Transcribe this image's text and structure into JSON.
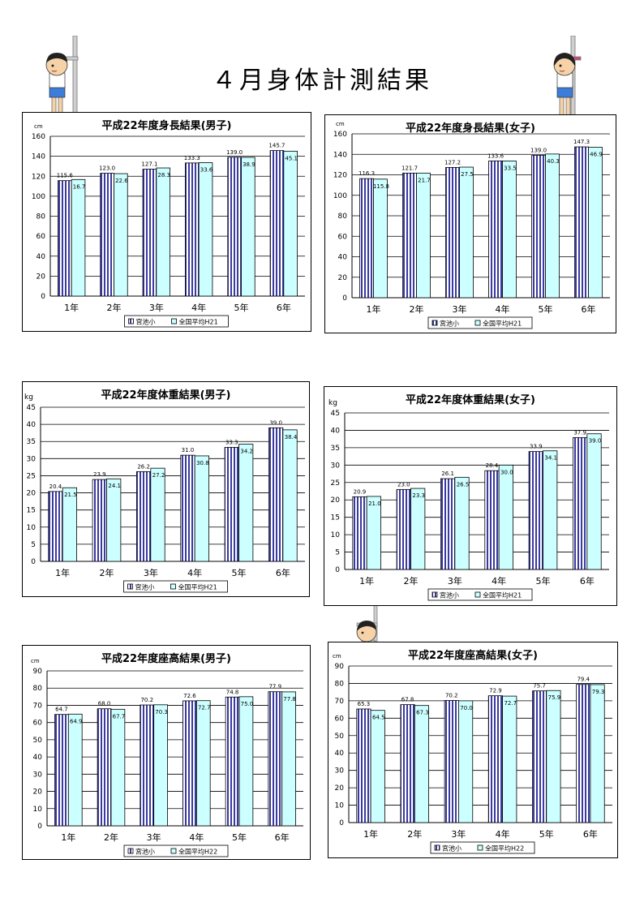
{
  "page": {
    "title": "４月身体計測結果"
  },
  "legend": {
    "school": "宮池小"
  },
  "chart_data": [
    {
      "id": "height-boys",
      "type": "bar",
      "title": "平成22年度身長結果(男子)",
      "unit": "cm",
      "categories": [
        "1年",
        "2年",
        "3年",
        "4年",
        "5年",
        "6年"
      ],
      "ylim": [
        0,
        160
      ],
      "ytick_step": 20,
      "series": [
        {
          "name": "宮池小",
          "values": [
            115.6,
            123.0,
            127.1,
            133.3,
            139.0,
            145.7
          ],
          "labels": [
            "115.6",
            "123.0",
            "127.1",
            "133.3",
            "139.0",
            "145.7"
          ]
        },
        {
          "name": "全国平均H21",
          "values": [
            116.7,
            122.6,
            128.3,
            133.6,
            138.9,
            145.1
          ],
          "labels": [
            "16.7",
            "22.6",
            "28.3",
            "33.6",
            "38.9",
            "45.1"
          ]
        }
      ]
    },
    {
      "id": "height-girls",
      "type": "bar",
      "title": "平成22年度身長結果(女子)",
      "unit": "cm",
      "categories": [
        "1年",
        "2年",
        "3年",
        "4年",
        "5年",
        "6年"
      ],
      "ylim": [
        0,
        160
      ],
      "ytick_step": 20,
      "series": [
        {
          "name": "宮池小",
          "values": [
            116.3,
            121.7,
            127.2,
            133.6,
            139.0,
            147.3
          ],
          "labels": [
            "116.3",
            "121.7",
            "127.2",
            "133.6",
            "139.0",
            "147.3"
          ]
        },
        {
          "name": "全国平均H21",
          "values": [
            115.8,
            121.7,
            127.5,
            133.5,
            140.3,
            146.9
          ],
          "labels": [
            "115.8",
            "21.7",
            "27.5",
            "33.5",
            "40.3",
            "46.9"
          ]
        }
      ]
    },
    {
      "id": "weight-boys",
      "type": "bar",
      "title": "平成22年度体重結果(男子)",
      "unit": "kg",
      "categories": [
        "1年",
        "2年",
        "3年",
        "4年",
        "5年",
        "6年"
      ],
      "ylim": [
        0,
        45
      ],
      "ytick_step": 5,
      "series": [
        {
          "name": "宮池小",
          "values": [
            20.4,
            23.9,
            26.2,
            31.0,
            33.3,
            39.0
          ],
          "labels": [
            "20.4",
            "23.9",
            "26.2",
            "31.0",
            "33.3",
            "39.0"
          ]
        },
        {
          "name": "全国平均H21",
          "values": [
            21.5,
            24.1,
            27.2,
            30.8,
            34.2,
            38.4
          ],
          "labels": [
            "21.5",
            "24.1",
            "27.2",
            "30.8",
            "34.2",
            "38.4"
          ]
        }
      ]
    },
    {
      "id": "weight-girls",
      "type": "bar",
      "title": "平成22年度体重結果(女子)",
      "unit": "kg",
      "categories": [
        "1年",
        "2年",
        "3年",
        "4年",
        "5年",
        "6年"
      ],
      "ylim": [
        0,
        45
      ],
      "ytick_step": 5,
      "series": [
        {
          "name": "宮池小",
          "values": [
            20.9,
            23.0,
            26.1,
            28.4,
            33.9,
            37.9
          ],
          "labels": [
            "20.9",
            "23.0",
            "26.1",
            "28.4",
            "33.9",
            "37.9"
          ]
        },
        {
          "name": "全国平均H21",
          "values": [
            21.0,
            23.3,
            26.5,
            30.0,
            34.1,
            39.0
          ],
          "labels": [
            "21.0",
            "23.3",
            "26.5",
            "30.0",
            "34.1",
            "39.0"
          ]
        }
      ]
    },
    {
      "id": "sitting-boys",
      "type": "bar",
      "title": "平成22年度座高結果(男子)",
      "unit": "cm",
      "categories": [
        "1年",
        "2年",
        "3年",
        "4年",
        "5年",
        "6年"
      ],
      "ylim": [
        0,
        90
      ],
      "ytick_step": 10,
      "series": [
        {
          "name": "宮池小",
          "values": [
            64.7,
            68.0,
            70.2,
            72.6,
            74.8,
            77.9
          ],
          "labels": [
            "64.7",
            "68.0",
            "70.2",
            "72.6",
            "74.8",
            "77.9"
          ]
        },
        {
          "name": "全国平均H22",
          "values": [
            64.9,
            67.7,
            70.3,
            72.7,
            75.0,
            77.8
          ],
          "labels": [
            "64.9",
            "67.7",
            "70.3",
            "72.7",
            "75.0",
            "77.8"
          ]
        }
      ]
    },
    {
      "id": "sitting-girls",
      "type": "bar",
      "title": "平成22年度座高結果(女子)",
      "unit": "cm",
      "categories": [
        "1年",
        "2年",
        "3年",
        "4年",
        "5年",
        "6年"
      ],
      "ylim": [
        0,
        90
      ],
      "ytick_step": 10,
      "series": [
        {
          "name": "宮池小",
          "values": [
            65.3,
            67.8,
            70.2,
            72.9,
            75.7,
            79.4
          ],
          "labels": [
            "65.3",
            "67.8",
            "70.2",
            "72.9",
            "75.7",
            "79.4"
          ]
        },
        {
          "name": "全国平均H22",
          "values": [
            64.5,
            67.3,
            70.0,
            72.7,
            75.9,
            79.3
          ],
          "labels": [
            "64.5",
            "67.3",
            "70.0",
            "72.7",
            "75.9",
            "79.3"
          ]
        }
      ]
    }
  ]
}
